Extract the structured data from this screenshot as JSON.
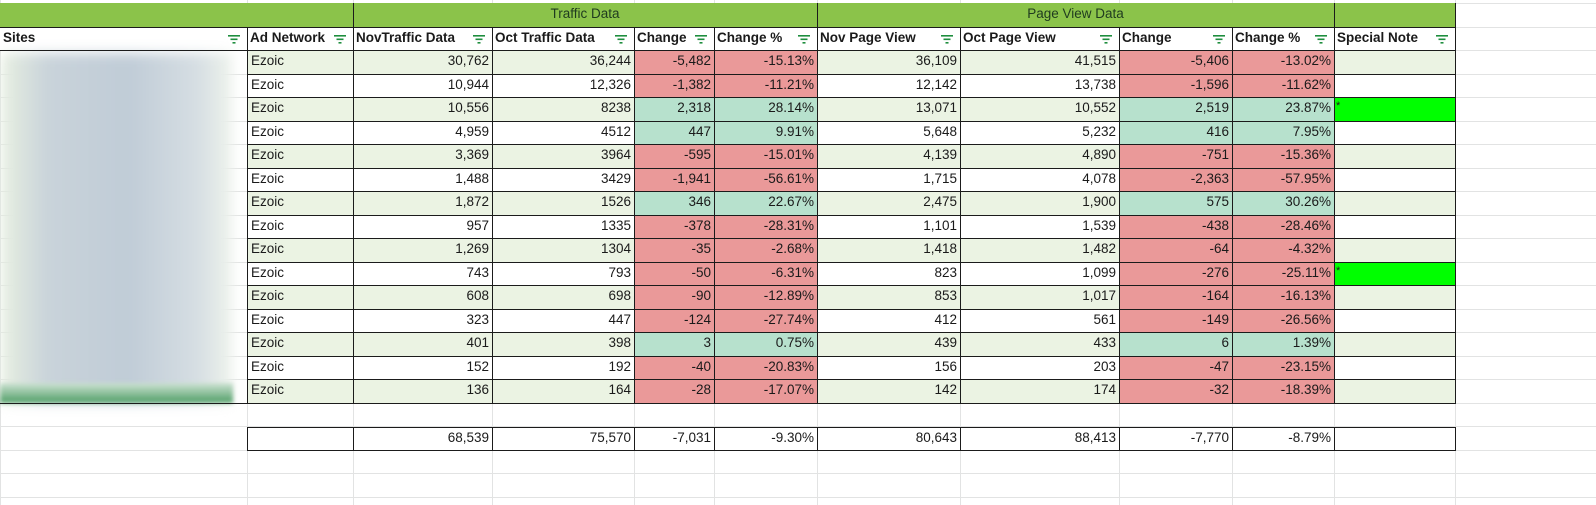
{
  "group_headers": {
    "traffic": "Traffic Data",
    "pageview": "Page View Data"
  },
  "columns": {
    "sites": "Sites",
    "ad_network": "Ad Network",
    "nov_traffic": "NovTraffic Data",
    "oct_traffic": "Oct Traffic Data",
    "traffic_change": "Change",
    "traffic_change_pct": "Change %",
    "nov_pv": "Nov Page View",
    "oct_pv": "Oct Page View",
    "pv_change": "Change",
    "pv_change_pct": "Change %",
    "special_note": "Special Note"
  },
  "rows": [
    {
      "network": "Ezoic",
      "nov_t": "30,762",
      "oct_t": "36,244",
      "tc": "-5,482",
      "tcp": "-15.13%",
      "nov_pv": "36,109",
      "oct_pv": "41,515",
      "pc": "-5,406",
      "pcp": "-13.02%",
      "note": ""
    },
    {
      "network": "Ezoic",
      "nov_t": "10,944",
      "oct_t": "12,326",
      "tc": "-1,382",
      "tcp": "-11.21%",
      "nov_pv": "12,142",
      "oct_pv": "13,738",
      "pc": "-1,596",
      "pcp": "-11.62%",
      "note": ""
    },
    {
      "network": "Ezoic",
      "nov_t": "10,556",
      "oct_t": "8238",
      "tc": "2,318",
      "tcp": "28.14%",
      "nov_pv": "13,071",
      "oct_pv": "10,552",
      "pc": "2,519",
      "pcp": "23.87%",
      "note": "*"
    },
    {
      "network": "Ezoic",
      "nov_t": "4,959",
      "oct_t": "4512",
      "tc": "447",
      "tcp": "9.91%",
      "nov_pv": "5,648",
      "oct_pv": "5,232",
      "pc": "416",
      "pcp": "7.95%",
      "note": ""
    },
    {
      "network": "Ezoic",
      "nov_t": "3,369",
      "oct_t": "3964",
      "tc": "-595",
      "tcp": "-15.01%",
      "nov_pv": "4,139",
      "oct_pv": "4,890",
      "pc": "-751",
      "pcp": "-15.36%",
      "note": ""
    },
    {
      "network": "Ezoic",
      "nov_t": "1,488",
      "oct_t": "3429",
      "tc": "-1,941",
      "tcp": "-56.61%",
      "nov_pv": "1,715",
      "oct_pv": "4,078",
      "pc": "-2,363",
      "pcp": "-57.95%",
      "note": ""
    },
    {
      "network": "Ezoic",
      "nov_t": "1,872",
      "oct_t": "1526",
      "tc": "346",
      "tcp": "22.67%",
      "nov_pv": "2,475",
      "oct_pv": "1,900",
      "pc": "575",
      "pcp": "30.26%",
      "note": ""
    },
    {
      "network": "Ezoic",
      "nov_t": "957",
      "oct_t": "1335",
      "tc": "-378",
      "tcp": "-28.31%",
      "nov_pv": "1,101",
      "oct_pv": "1,539",
      "pc": "-438",
      "pcp": "-28.46%",
      "note": ""
    },
    {
      "network": "Ezoic",
      "nov_t": "1,269",
      "oct_t": "1304",
      "tc": "-35",
      "tcp": "-2.68%",
      "nov_pv": "1,418",
      "oct_pv": "1,482",
      "pc": "-64",
      "pcp": "-4.32%",
      "note": ""
    },
    {
      "network": "Ezoic",
      "nov_t": "743",
      "oct_t": "793",
      "tc": "-50",
      "tcp": "-6.31%",
      "nov_pv": "823",
      "oct_pv": "1,099",
      "pc": "-276",
      "pcp": "-25.11%",
      "note": "*"
    },
    {
      "network": "Ezoic",
      "nov_t": "608",
      "oct_t": "698",
      "tc": "-90",
      "tcp": "-12.89%",
      "nov_pv": "853",
      "oct_pv": "1,017",
      "pc": "-164",
      "pcp": "-16.13%",
      "note": ""
    },
    {
      "network": "Ezoic",
      "nov_t": "323",
      "oct_t": "447",
      "tc": "-124",
      "tcp": "-27.74%",
      "nov_pv": "412",
      "oct_pv": "561",
      "pc": "-149",
      "pcp": "-26.56%",
      "note": ""
    },
    {
      "network": "Ezoic",
      "nov_t": "401",
      "oct_t": "398",
      "tc": "3",
      "tcp": "0.75%",
      "nov_pv": "439",
      "oct_pv": "433",
      "pc": "6",
      "pcp": "1.39%",
      "note": ""
    },
    {
      "network": "Ezoic",
      "nov_t": "152",
      "oct_t": "192",
      "tc": "-40",
      "tcp": "-20.83%",
      "nov_pv": "156",
      "oct_pv": "203",
      "pc": "-47",
      "pcp": "-23.15%",
      "note": ""
    },
    {
      "network": "Ezoic",
      "nov_t": "136",
      "oct_t": "164",
      "tc": "-28",
      "tcp": "-17.07%",
      "nov_pv": "142",
      "oct_pv": "174",
      "pc": "-32",
      "pcp": "-18.39%",
      "note": ""
    }
  ],
  "totals": {
    "nov_t": "68,539",
    "oct_t": "75,570",
    "tc": "-7,031",
    "tcp": "-9.30%",
    "nov_pv": "80,643",
    "oct_pv": "88,413",
    "pc": "-7,770",
    "pcp": "-8.79%"
  },
  "colors": {
    "group_header_green": "#8bc34a",
    "band_light_green": "#ebf3e3",
    "negative_red": "#ea9999",
    "positive_green": "#b7e1cd",
    "note_bright_green": "#00ff00",
    "filter_icon_green": "#1e8e3e"
  },
  "icons": {
    "column_filter": "filter-icon"
  }
}
